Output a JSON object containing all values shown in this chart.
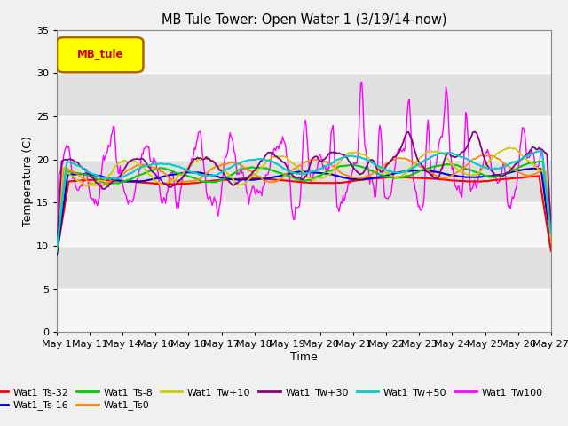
{
  "title": "MB Tule Tower: Open Water 1 (3/19/14-now)",
  "xlabel": "Time",
  "ylabel": "Temperature (C)",
  "ylim": [
    0,
    35
  ],
  "yticks": [
    0,
    5,
    10,
    15,
    20,
    25,
    30,
    35
  ],
  "x_labels": [
    "May 1",
    "May 11",
    "May 14",
    "May 16",
    "May 16",
    "May 17",
    "May 18",
    "May 19",
    "May 20",
    "May 21",
    "May 22",
    "May 23",
    "May 24",
    "May 25",
    "May 26",
    "May 27"
  ],
  "background_color": "#f0f0f0",
  "plot_bg_color": "#e8e8e8",
  "legend_label": "MB_tule",
  "legend_bg": "#ffff00",
  "legend_border": "#aa6600",
  "series_colors": {
    "Wat1_Ts-32": "#ff0000",
    "Wat1_Ts-16": "#0000dd",
    "Wat1_Ts-8": "#00cc00",
    "Wat1_Ts0": "#ff8800",
    "Wat1_Tw+10": "#cccc00",
    "Wat1_Tw+30": "#880088",
    "Wat1_Tw+50": "#00cccc",
    "Wat1_Tw100": "#ff00ff"
  }
}
